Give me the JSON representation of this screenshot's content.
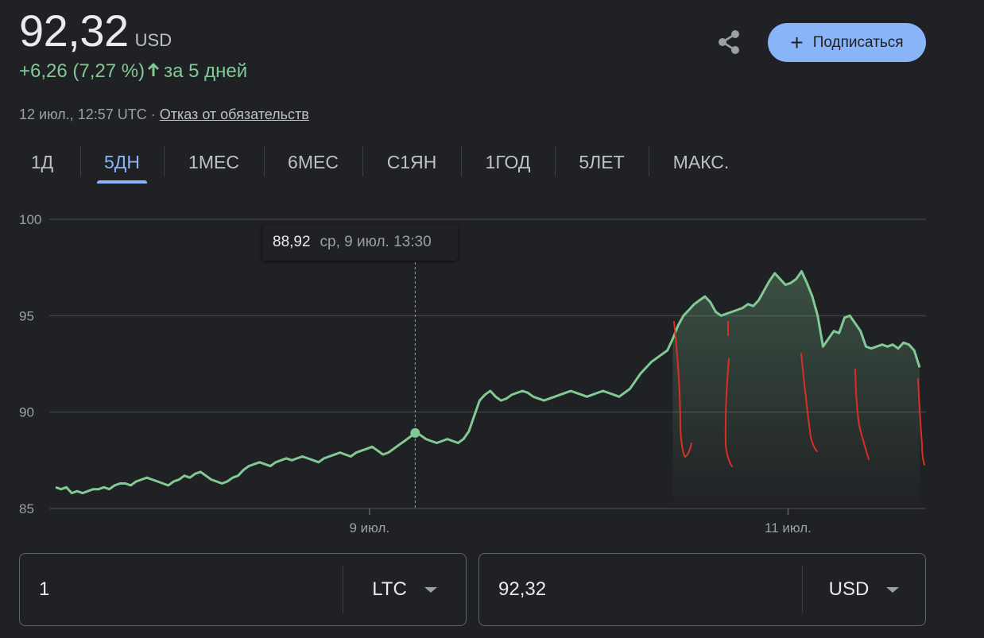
{
  "header": {
    "price": "92,32",
    "currency": "USD",
    "change": "+6,26 (7,27 %)",
    "change_period": "за 5 дней",
    "timestamp": "12 июл., 12:57 UTC · ",
    "disclaimer": "Отказ от обязательств",
    "subscribe_label": "Подписаться",
    "accent_color": "#81c995",
    "button_color": "#8ab4f8"
  },
  "tabs": [
    {
      "label": "1Д",
      "active": false
    },
    {
      "label": "5ДН",
      "active": true
    },
    {
      "label": "1МЕС",
      "active": false
    },
    {
      "label": "6МЕС",
      "active": false
    },
    {
      "label": "С1ЯН",
      "active": false
    },
    {
      "label": "1ГОД",
      "active": false
    },
    {
      "label": "5ЛЕТ",
      "active": false
    },
    {
      "label": "МАКС.",
      "active": false
    }
  ],
  "tooltip": {
    "value": "88,92",
    "time": "ср, 9 июл. 13:30"
  },
  "chart_data": {
    "type": "line",
    "ylim": [
      85,
      100
    ],
    "y_ticks": [
      "100",
      "95",
      "90",
      "85"
    ],
    "x_ticks": [
      "9 июл.",
      "11 июл."
    ],
    "grid": true,
    "line_color": "#81c995",
    "series": [
      {
        "values": [
          86.1,
          86.0,
          86.1,
          85.8,
          85.9,
          85.8,
          85.9,
          86.0,
          86.0,
          86.1,
          86.0,
          86.2,
          86.3,
          86.3,
          86.2,
          86.4,
          86.5,
          86.6,
          86.5,
          86.4,
          86.3,
          86.2,
          86.4,
          86.5,
          86.7,
          86.6,
          86.8,
          86.9,
          86.7,
          86.5,
          86.4,
          86.3,
          86.4,
          86.6,
          86.7,
          87.0,
          87.2,
          87.3,
          87.4,
          87.3,
          87.2,
          87.4,
          87.5,
          87.6,
          87.5,
          87.6,
          87.7,
          87.6,
          87.5,
          87.4,
          87.6,
          87.7,
          87.8,
          87.9,
          87.8,
          87.7,
          87.9,
          88.0,
          88.1,
          88.2,
          88.0,
          87.8,
          87.9,
          88.1,
          88.3,
          88.5,
          88.7,
          88.92,
          88.8,
          88.6,
          88.5,
          88.4,
          88.5,
          88.6,
          88.5,
          88.4,
          88.6,
          89.0,
          89.8,
          90.6,
          90.9,
          91.1,
          90.8,
          90.6,
          90.7,
          90.9,
          91.0,
          91.1,
          91.0,
          90.8,
          90.7,
          90.6,
          90.7,
          90.8,
          90.9,
          91.0,
          91.1,
          91.0,
          90.9,
          90.8,
          90.9,
          91.0,
          91.1,
          91.0,
          90.9,
          90.8,
          91.0,
          91.2,
          91.6,
          92.0,
          92.3,
          92.6,
          92.8,
          93.0,
          93.2,
          93.8,
          94.5,
          95.0,
          95.3,
          95.6,
          95.8,
          96.0,
          95.7,
          95.2,
          95.0,
          95.1,
          95.2,
          95.3,
          95.4,
          95.6,
          95.5,
          95.8,
          96.3,
          96.8,
          97.2,
          96.9,
          96.6,
          96.7,
          96.9,
          97.3,
          96.7,
          96.0,
          95.0,
          93.4,
          93.8,
          94.2,
          94.1,
          94.9,
          95.0,
          94.6,
          94.2,
          93.4,
          93.3,
          93.4,
          93.5,
          93.4,
          93.5,
          93.3,
          93.6,
          93.5,
          93.2,
          92.32
        ]
      }
    ],
    "cursor_point": {
      "index": 67,
      "value": 88.92
    }
  },
  "converter": {
    "left_amount": "1",
    "left_currency": "LTC",
    "right_amount": "92,32",
    "right_currency": "USD"
  }
}
